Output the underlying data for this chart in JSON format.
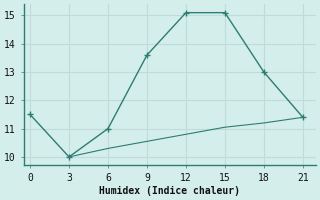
{
  "line1_x": [
    0,
    3,
    6,
    9,
    12,
    15,
    18,
    21
  ],
  "line1_y": [
    11.5,
    10.0,
    11.0,
    13.6,
    15.1,
    15.1,
    13.0,
    11.4
  ],
  "line2_x": [
    3,
    6,
    9,
    12,
    15,
    18,
    21
  ],
  "line2_y": [
    10.0,
    10.3,
    10.55,
    10.8,
    11.05,
    11.2,
    11.4
  ],
  "line_color": "#2d7d72",
  "bg_color": "#d4eeeb",
  "grid_color": "#c0dbd8",
  "spine_color": "#2d7d72",
  "xlabel": "Humidex (Indice chaleur)",
  "xlim": [
    -0.5,
    22
  ],
  "ylim": [
    9.7,
    15.4
  ],
  "xticks": [
    0,
    3,
    6,
    9,
    12,
    15,
    18,
    21
  ],
  "yticks": [
    10,
    11,
    12,
    13,
    14,
    15
  ],
  "xlabel_fontsize": 7,
  "tick_fontsize": 7,
  "marker_size": 3.5
}
